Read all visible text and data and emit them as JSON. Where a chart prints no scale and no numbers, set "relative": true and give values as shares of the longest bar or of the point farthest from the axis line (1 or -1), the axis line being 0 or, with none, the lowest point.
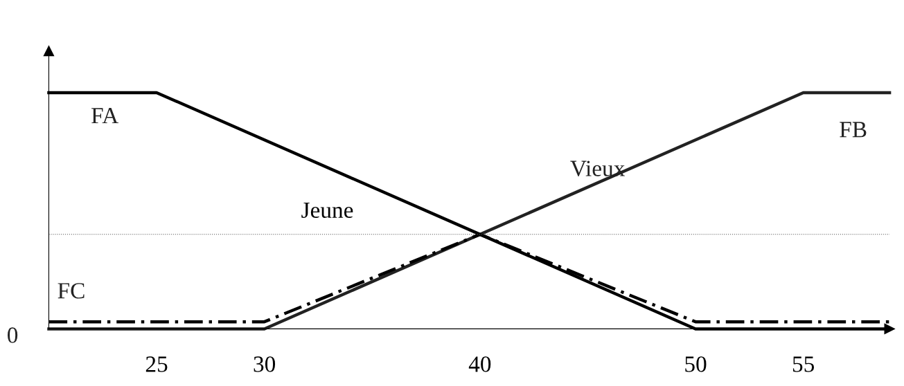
{
  "chart_data": {
    "type": "line",
    "relative": true,
    "series": [
      {
        "name": "Jeune",
        "color": "#000000",
        "x": [
          20,
          25,
          50,
          59
        ],
        "values": [
          1,
          1,
          0,
          0
        ]
      },
      {
        "name": "Vieux",
        "color": "#222222",
        "x": [
          20,
          30,
          55,
          59
        ],
        "values": [
          0,
          0,
          1,
          1
        ]
      },
      {
        "color": "#000000",
        "x": [
          20,
          30,
          40,
          50,
          59
        ],
        "values": [
          0.03,
          0.03,
          0.4,
          0.03,
          0.03
        ],
        "line_style": "dashed"
      }
    ],
    "xlim": [
      20,
      59
    ],
    "xticks": [
      25,
      30,
      40,
      50,
      55
    ],
    "ref_lines": [
      {
        "axis": "y",
        "value": 0.4,
        "line_style": "dotted",
        "color": "#555555"
      }
    ],
    "annotations": [
      "FA",
      "FB",
      "FC",
      "0"
    ],
    "grid": false,
    "legend": false,
    "marker": "none",
    "line_style": "solid"
  }
}
